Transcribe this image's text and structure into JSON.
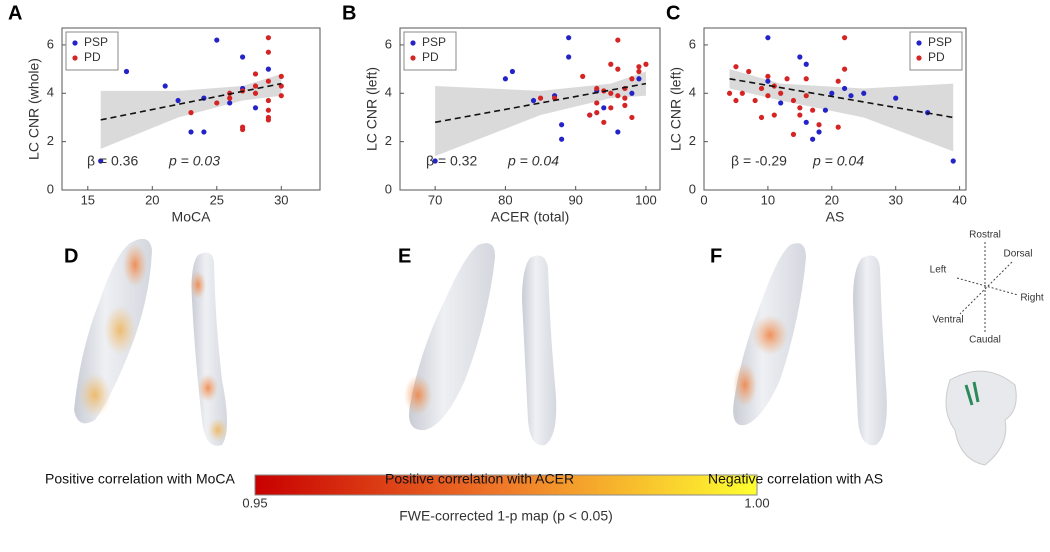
{
  "chart_data": [
    {
      "type": "scatter",
      "xlabel": "MoCA",
      "ylabel": "LC CNR (whole)",
      "xlim": [
        13,
        33
      ],
      "ylim": [
        0,
        6.7
      ],
      "xticks": [
        15,
        20,
        25,
        30
      ],
      "yticks": [
        0,
        2,
        4,
        6
      ],
      "legend": "upper left",
      "series": [
        {
          "name": "PSP",
          "color": "#2323c8",
          "x": [
            16,
            18,
            21,
            22,
            23,
            24,
            25,
            26,
            27,
            27,
            28,
            29,
            24
          ],
          "values": [
            1.2,
            4.9,
            4.3,
            3.7,
            2.4,
            2.4,
            6.2,
            3.6,
            5.5,
            4.2,
            3.4,
            5.0,
            3.8
          ]
        },
        {
          "name": "PD",
          "color": "#d42424",
          "x": [
            23,
            25,
            26,
            27,
            27,
            27,
            28,
            28,
            29,
            29,
            29,
            29,
            29,
            29,
            30,
            30,
            30,
            29,
            28,
            26
          ],
          "values": [
            3.2,
            3.6,
            3.8,
            4.1,
            2.6,
            2.5,
            4.0,
            4.3,
            6.3,
            5.7,
            4.5,
            3.7,
            3.3,
            3.0,
            4.7,
            4.3,
            3.9,
            2.9,
            4.8,
            4.0
          ]
        }
      ],
      "fit": {
        "x": [
          16,
          30
        ],
        "values": [
          2.9,
          4.4
        ]
      },
      "ci": {
        "x": [
          16,
          22,
          27,
          30
        ],
        "upper": [
          4.1,
          4.1,
          4.3,
          4.8
        ],
        "lower": [
          1.7,
          3.0,
          3.7,
          3.9
        ]
      },
      "annotations": [
        "β = 0.36",
        "p = 0.03"
      ]
    },
    {
      "type": "scatter",
      "xlabel": "ACER (total)",
      "ylabel": "LC CNR (left)",
      "xlim": [
        65,
        102
      ],
      "ylim": [
        0,
        6.7
      ],
      "xticks": [
        70,
        80,
        90,
        100
      ],
      "yticks": [
        0,
        2,
        4,
        6
      ],
      "legend": "upper left",
      "series": [
        {
          "name": "PSP",
          "color": "#2323c8",
          "x": [
            70,
            80,
            81,
            84,
            87,
            88,
            88,
            89,
            89,
            93,
            94,
            96,
            98,
            99,
            92
          ],
          "values": [
            1.2,
            4.6,
            4.9,
            3.7,
            3.9,
            2.7,
            2.1,
            6.3,
            5.5,
            4.1,
            3.4,
            2.4,
            4.0,
            4.6,
            3.1
          ]
        },
        {
          "name": "PD",
          "color": "#d42424",
          "x": [
            85,
            87,
            91,
            92,
            93,
            93,
            93,
            94,
            95,
            95,
            96,
            96,
            96,
            97,
            97,
            98,
            98,
            99,
            99,
            100,
            94,
            95,
            97
          ],
          "values": [
            3.8,
            3.8,
            4.7,
            3.1,
            4.2,
            3.6,
            3.2,
            4.1,
            4.0,
            3.4,
            6.2,
            5.0,
            3.9,
            4.2,
            3.5,
            3.0,
            4.6,
            5.1,
            4.9,
            5.2,
            2.8,
            5.2,
            3.8
          ]
        }
      ],
      "fit": {
        "x": [
          70,
          100
        ],
        "values": [
          2.8,
          4.4
        ]
      },
      "ci": {
        "x": [
          70,
          85,
          95,
          100
        ],
        "upper": [
          4.3,
          4.1,
          4.4,
          4.9
        ],
        "lower": [
          1.4,
          3.1,
          3.8,
          3.9
        ]
      },
      "annotations": [
        "β = 0.32",
        "p = 0.04"
      ]
    },
    {
      "type": "scatter",
      "xlabel": "AS",
      "ylabel": "LC CNR (left)",
      "xlim": [
        0,
        41
      ],
      "ylim": [
        0,
        6.7
      ],
      "xticks": [
        0,
        10,
        20,
        30,
        40
      ],
      "yticks": [
        0,
        2,
        4,
        6
      ],
      "legend": "upper right",
      "series": [
        {
          "name": "PSP",
          "color": "#2323c8",
          "x": [
            10,
            10,
            12,
            15,
            16,
            16,
            18,
            19,
            20,
            22,
            23,
            25,
            30,
            35,
            39,
            17
          ],
          "values": [
            6.3,
            4.5,
            3.6,
            5.5,
            5.2,
            2.8,
            2.4,
            3.3,
            4.0,
            4.2,
            3.9,
            4.0,
            3.8,
            3.2,
            1.2,
            2.1
          ]
        },
        {
          "name": "PD",
          "color": "#d42424",
          "x": [
            4,
            5,
            5,
            6,
            7,
            8,
            9,
            10,
            10,
            11,
            11,
            12,
            13,
            14,
            15,
            15,
            16,
            16,
            17,
            18,
            21,
            22,
            22,
            21,
            9,
            14
          ],
          "values": [
            4.0,
            5.1,
            3.7,
            4.0,
            4.9,
            3.7,
            4.2,
            3.9,
            4.7,
            4.3,
            3.1,
            4.0,
            4.6,
            3.7,
            3.4,
            3.1,
            4.6,
            3.9,
            3.3,
            2.7,
            4.5,
            5.0,
            6.3,
            2.6,
            3.0,
            2.3
          ]
        }
      ],
      "fit": {
        "x": [
          4,
          39
        ],
        "values": [
          4.6,
          3.0
        ]
      },
      "ci": {
        "x": [
          4,
          12,
          25,
          39
        ],
        "upper": [
          5.0,
          4.4,
          4.2,
          4.4
        ],
        "lower": [
          4.2,
          3.7,
          3.0,
          1.6
        ]
      },
      "annotations": [
        "β = -0.29",
        "p = 0.04"
      ]
    }
  ],
  "panels": {
    "letters": [
      "A",
      "B",
      "C",
      "D",
      "E",
      "F"
    ],
    "captions": [
      "Positive correlation with MoCA",
      "Positive correlation with ACER",
      "Negative correlation with AS"
    ]
  },
  "orientation": {
    "rostral": "Rostral",
    "dorsal": "Dorsal",
    "left": "Left",
    "right": "Right",
    "ventral": "Ventral",
    "caudal": "Caudal"
  },
  "colorbar": {
    "min_label": "0.95",
    "max_label": "1.00",
    "title": "FWE-corrected 1-p map (p < 0.05)"
  }
}
